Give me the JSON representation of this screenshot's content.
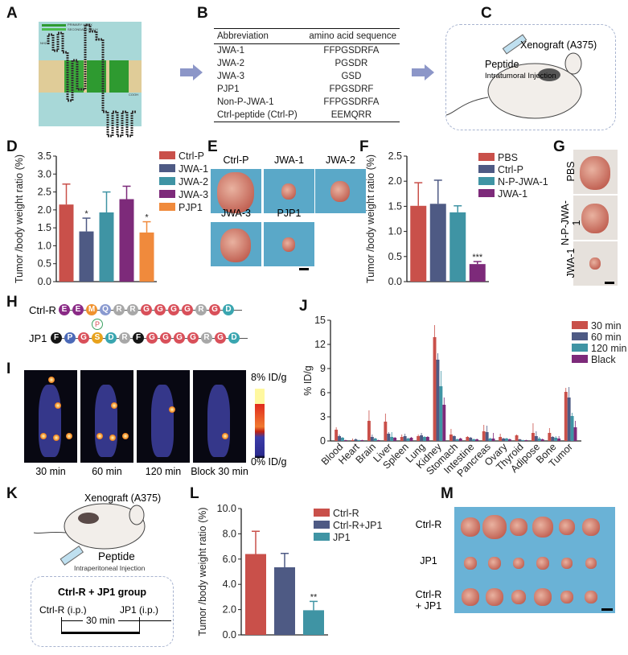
{
  "panel_labels": {
    "A": "A",
    "B": "B",
    "C": "C",
    "D": "D",
    "E": "E",
    "F": "F",
    "G": "G",
    "H": "H",
    "I": "I",
    "J": "J",
    "K": "K",
    "L": "L",
    "M": "M"
  },
  "panelA": {
    "legend": [
      "PRIMARY HELIX",
      "SECONDARY HELIX"
    ],
    "nterm": "NH2",
    "cterm": "COOH"
  },
  "panelB": {
    "headers": [
      "Abbreviation",
      "amino acid sequence"
    ],
    "rows": [
      [
        "JWA-1",
        "FFPGSDRFA"
      ],
      [
        "JWA-2",
        "PGSDR"
      ],
      [
        "JWA-3",
        "GSD"
      ],
      [
        "PJP1",
        "FPGSDRF"
      ],
      [
        "Non-P-JWA-1",
        "FFPGSDRFA"
      ],
      [
        "Ctrl-peptide (Ctrl-P)",
        "EEMQRR"
      ]
    ]
  },
  "panelC": {
    "xenograft": "Xenograft (A375)",
    "peptide": "Peptide",
    "injection": "Intratumoral Injection"
  },
  "panelE": {
    "labels": [
      "Ctrl-P",
      "JWA-1",
      "JWA-2",
      "JWA-3",
      "PJP1"
    ]
  },
  "panelG": {
    "labels": [
      "PBS",
      "N-P-JWA-1",
      "JWA-1"
    ]
  },
  "panelH": {
    "rows": [
      {
        "name": "Ctrl-R",
        "residues": [
          "E",
          "E",
          "M",
          "Q",
          "R",
          "R",
          "G",
          "G",
          "G",
          "G",
          "R",
          "G",
          "D"
        ]
      },
      {
        "name": "JP1",
        "residues": [
          "F",
          "P",
          "G",
          "S",
          "D",
          "R",
          "F",
          "G",
          "G",
          "G",
          "G",
          "R",
          "G",
          "D"
        ],
        "phospho": "P"
      }
    ],
    "colors": {
      "E": "#8a2a86",
      "M": "#f0922e",
      "Q": "#8a9ad0",
      "R": "#a8a8a8",
      "G": "#d9505a",
      "D": "#3aa6b0",
      "F": "#151515",
      "P": "#4c6ab8",
      "S": "#e8a21c"
    }
  },
  "panelI": {
    "captions": [
      "30 min",
      "60 min",
      "120 min",
      "Block 30 min"
    ],
    "scale_max": "8% ID/g",
    "scale_min": "0% ID/g"
  },
  "panelK": {
    "xenograft": "Xenograft (A375)",
    "peptide": "Peptide",
    "injection": "Intraperitoneal Injection",
    "group_title": "Ctrl-R + JP1 group",
    "step1": "Ctrl-R (i.p.)",
    "step2": "JP1 (i.p.)",
    "interval": "30 min"
  },
  "panelM": {
    "labels": [
      "Ctrl-R",
      "JP1",
      "Ctrl-R\n+ JP1"
    ]
  },
  "chart_data": [
    {
      "id": "D",
      "type": "bar",
      "ylabel": "Tumor /body weight ratio (%)",
      "ylim": [
        0,
        3.5
      ],
      "yticks": [
        "0.0",
        "0.5",
        "1.0",
        "1.5",
        "2.0",
        "2.5",
        "3.0",
        "3.5"
      ],
      "categories": [
        "Ctrl-P",
        "JWA-1",
        "JWA-2",
        "JWA-3",
        "PJP1"
      ],
      "values": [
        2.15,
        1.4,
        1.93,
        2.3,
        1.37
      ],
      "errors": [
        0.57,
        0.37,
        0.57,
        0.36,
        0.3
      ],
      "annotations": [
        "",
        "*",
        "",
        "",
        "*"
      ],
      "colors": [
        "#c9504a",
        "#4e5a84",
        "#3f94a4",
        "#7d2a7a",
        "#f08a3c"
      ],
      "legend": "right"
    },
    {
      "id": "F",
      "type": "bar",
      "ylabel": "Tumor /body weight ratio (%)",
      "ylim": [
        0,
        2.5
      ],
      "yticks": [
        "0.0",
        "0.5",
        "1.0",
        "1.5",
        "2.0",
        "2.5"
      ],
      "categories": [
        "PBS",
        "Ctrl-P",
        "N-P-JWA-1",
        "JWA-1"
      ],
      "values": [
        1.51,
        1.55,
        1.38,
        0.35
      ],
      "errors": [
        0.46,
        0.47,
        0.13,
        0.05
      ],
      "annotations": [
        "",
        "",
        "",
        "***"
      ],
      "colors": [
        "#c9504a",
        "#4e5a84",
        "#3f94a4",
        "#7d2a7a"
      ],
      "legend": "top-right"
    },
    {
      "id": "J",
      "type": "bar",
      "ylabel": "% ID/g",
      "ylim": [
        0,
        15
      ],
      "yticks": [
        "0",
        "3",
        "6",
        "9",
        "12",
        "15"
      ],
      "categories": [
        "Blood",
        "Heart",
        "Brain",
        "Liver",
        "Spleen",
        "Lung",
        "Kidney",
        "Stomach",
        "Intestine",
        "Pancreas",
        "Ovary",
        "Thyroid",
        "Adipose",
        "Bone",
        "Tumor"
      ],
      "series": [
        {
          "name": "30 min",
          "color": "#c9504a",
          "values": [
            1.4,
            0.1,
            2.5,
            2.4,
            0.5,
            0.6,
            12.9,
            0.8,
            0.5,
            1.2,
            0.5,
            0.7,
            1.0,
            1.0,
            6.1
          ],
          "errors": [
            0.3,
            0.2,
            1.3,
            1.0,
            0.3,
            0.2,
            1.5,
            0.7,
            0.1,
            0.8,
            0.4,
            0.1,
            1.2,
            0.6,
            0.5
          ]
        },
        {
          "name": "60 min",
          "color": "#4e5a84",
          "values": [
            0.6,
            0.2,
            0.5,
            0.9,
            0.6,
            0.7,
            10.1,
            0.6,
            0.4,
            1.1,
            0.3,
            0.2,
            0.6,
            0.5,
            5.4
          ],
          "errors": [
            0.2,
            0.1,
            0.3,
            0.2,
            0.3,
            0.3,
            0.8,
            0.1,
            0.1,
            0.8,
            0.1,
            0.05,
            0.6,
            0.1,
            1.3
          ]
        },
        {
          "name": "120 min",
          "color": "#3f94a4",
          "values": [
            0.4,
            0.1,
            0.3,
            0.5,
            0.3,
            0.5,
            6.8,
            0.2,
            0.2,
            0.3,
            0.3,
            0.1,
            0.3,
            0.4,
            3.1
          ],
          "errors": [
            0.1,
            0.05,
            0.1,
            0.6,
            0.1,
            0.1,
            1.9,
            0.1,
            0.1,
            0.1,
            0.1,
            0.05,
            0.2,
            0.2,
            0.4
          ]
        },
        {
          "name": "Black",
          "color": "#7d2a7a",
          "values": [
            0.1,
            0.1,
            0.1,
            0.4,
            0.4,
            0.5,
            4.5,
            0.3,
            0.2,
            0.3,
            0.2,
            0.1,
            0.2,
            0.3,
            1.7
          ],
          "errors": [
            0.05,
            0.05,
            0.05,
            0.1,
            0.1,
            0.1,
            0.9,
            0.1,
            0.1,
            0.7,
            0.1,
            0.05,
            0.1,
            0.3,
            0.8
          ]
        }
      ],
      "legend": "top-right"
    },
    {
      "id": "L",
      "type": "bar",
      "ylabel": "Tumor /body weight ratio (%)",
      "ylim": [
        0,
        10
      ],
      "yticks": [
        "0.0",
        "2.0",
        "4.0",
        "6.0",
        "8.0",
        "10.0"
      ],
      "categories": [
        "Ctrl-R",
        "Ctrl-R+JP1",
        "JP1"
      ],
      "values": [
        6.4,
        5.35,
        1.95
      ],
      "errors": [
        1.8,
        1.1,
        0.7
      ],
      "annotations": [
        "",
        "",
        "**"
      ],
      "colors": [
        "#c9504a",
        "#4e5a84",
        "#3f94a4"
      ],
      "legend": "top-right"
    }
  ]
}
